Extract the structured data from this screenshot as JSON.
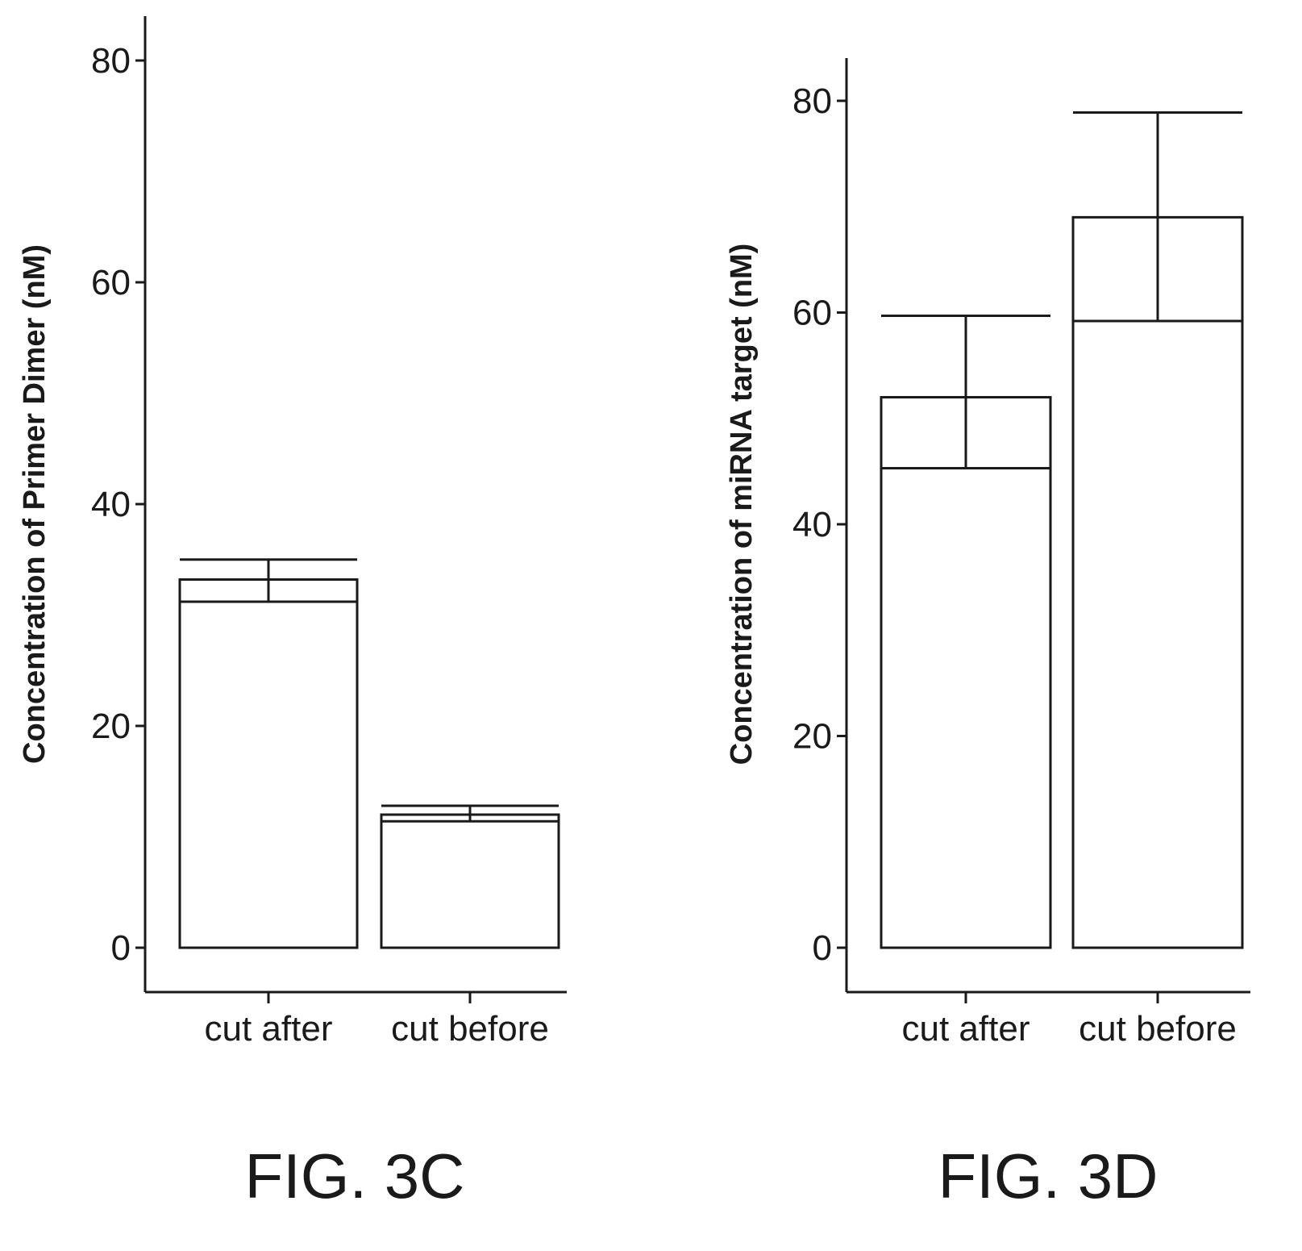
{
  "chart_data": [
    {
      "type": "bar",
      "caption": "FIG. 3C",
      "title": "",
      "xlabel": "",
      "ylabel": "Concentration of Primer Dimer (nM)",
      "categories": [
        "cut after",
        "cut before"
      ],
      "values": [
        33.2,
        12.0
      ],
      "error_lower": [
        31.2,
        11.4
      ],
      "error_upper": [
        35.0,
        12.8
      ],
      "ylim": [
        -4,
        84
      ],
      "yticks": [
        "0",
        "20",
        "40",
        "60",
        "80"
      ],
      "grid": false
    },
    {
      "type": "bar",
      "caption": "FIG. 3D",
      "title": "",
      "xlabel": "",
      "ylabel": "Concentration of miRNA target (nM)",
      "categories": [
        "cut after",
        "cut before"
      ],
      "values": [
        52.0,
        69.0
      ],
      "error_lower": [
        45.3,
        59.2
      ],
      "error_upper": [
        59.7,
        78.9
      ],
      "ylim": [
        -4,
        84
      ],
      "yticks": [
        "0",
        "20",
        "40",
        "60",
        "80"
      ],
      "grid": false
    }
  ]
}
